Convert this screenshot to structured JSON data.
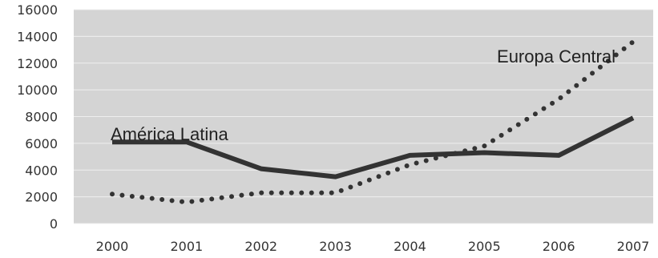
{
  "chart_data": {
    "type": "line",
    "x": [
      "2000",
      "2001",
      "2002",
      "2003",
      "2004",
      "2005",
      "2006",
      "2007"
    ],
    "ylim": [
      0,
      16000
    ],
    "yticks": [
      "0",
      "2000",
      "4000",
      "6000",
      "8000",
      "10000",
      "12000",
      "14000",
      "16000"
    ],
    "grid": true,
    "legend": "none",
    "series": [
      {
        "name": "América Latina",
        "values": [
          6100,
          6100,
          4100,
          3500,
          5100,
          5300,
          5100,
          7900
        ],
        "style": "solid",
        "color": "#333333"
      },
      {
        "name": "Europa Central",
        "values": [
          2200,
          1600,
          2300,
          2300,
          4400,
          5800,
          9300,
          13600
        ],
        "style": "dotted",
        "color": "#333333"
      }
    ],
    "plot_background": "#d4d4d4"
  }
}
